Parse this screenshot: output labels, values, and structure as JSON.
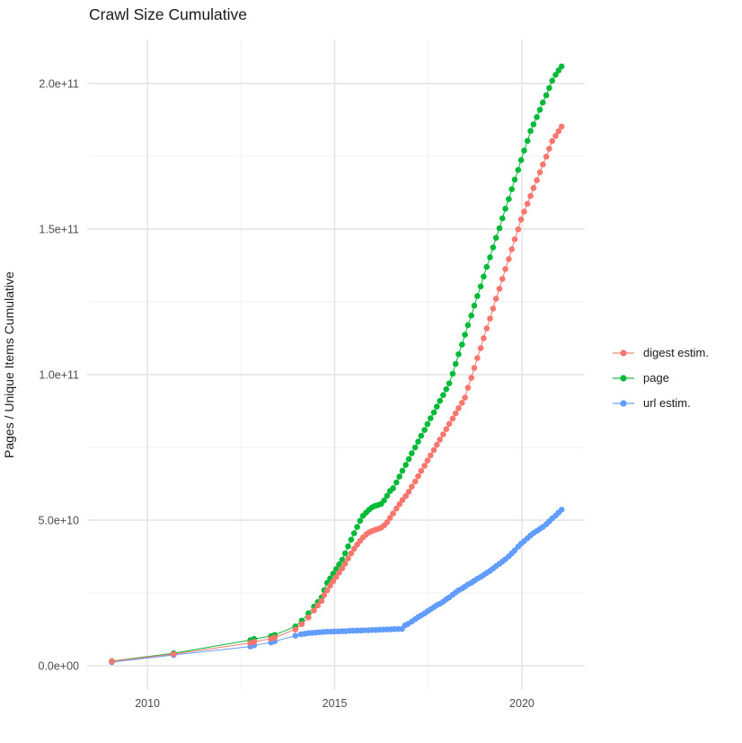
{
  "title": "Crawl Size Cumulative",
  "axes": {
    "y_label": "Pages / Unique Items Cumulative"
  },
  "legend": {
    "items": [
      {
        "label": "digest estim.",
        "color": "#F8766D"
      },
      {
        "label": "page",
        "color": "#00BA38"
      },
      {
        "label": "url estim.",
        "color": "#619CFF"
      }
    ]
  },
  "chart_data": {
    "type": "scatter",
    "title": "Crawl Size Cumulative",
    "xlabel": "",
    "ylabel": "Pages / Unique Items Cumulative",
    "grid": true,
    "legend_position": "right",
    "x_unit": "year",
    "value_unit_multiplier": 1000000000.0,
    "xlim": [
      2008.39,
      2021.68
    ],
    "ylim_billions": [
      -8.33,
      215.12
    ],
    "x_ticks": {
      "major": [
        2010,
        2015,
        2020
      ],
      "labels": [
        "2010",
        "2015",
        "2020"
      ],
      "minor": [
        2012.5,
        2017.5
      ]
    },
    "y_ticks": {
      "major_billions": [
        0,
        50,
        100,
        150,
        200
      ],
      "labels": [
        "0.0e+00",
        "5.0e+10",
        "1.0e+11",
        "1.5e+11",
        "2.0e+11"
      ],
      "minor_billions": [
        25,
        75,
        125,
        175
      ]
    },
    "series": [
      {
        "name": "digest estim.",
        "color": "#F8766D",
        "points_year_billions": [
          [
            2009.05,
            1.5
          ],
          [
            2010.7,
            4.0
          ],
          [
            2012.75,
            7.8
          ],
          [
            2012.85,
            8.2
          ],
          [
            2013.3,
            9.3
          ],
          [
            2013.4,
            9.7
          ],
          [
            2013.95,
            12.5
          ],
          [
            2014.12,
            14.3
          ],
          [
            2014.3,
            16.6
          ],
          [
            2014.45,
            19.0
          ],
          [
            2014.55,
            20.7
          ],
          [
            2014.65,
            22.3
          ],
          [
            2014.72,
            24.3
          ],
          [
            2014.8,
            25.9
          ],
          [
            2014.88,
            27.5
          ],
          [
            2014.96,
            29.0
          ],
          [
            2015.04,
            30.5
          ],
          [
            2015.12,
            32.0
          ],
          [
            2015.2,
            33.5
          ],
          [
            2015.28,
            35.1
          ],
          [
            2015.36,
            36.9
          ],
          [
            2015.44,
            38.6
          ],
          [
            2015.52,
            40.2
          ],
          [
            2015.6,
            41.6
          ],
          [
            2015.68,
            42.9
          ],
          [
            2015.76,
            44.1
          ],
          [
            2015.84,
            45.1
          ],
          [
            2015.92,
            45.8
          ],
          [
            2016.0,
            46.3
          ],
          [
            2016.08,
            46.7
          ],
          [
            2016.16,
            47.0
          ],
          [
            2016.24,
            47.4
          ],
          [
            2016.32,
            48.2
          ],
          [
            2016.4,
            49.3
          ],
          [
            2016.48,
            50.8
          ],
          [
            2016.56,
            52.3
          ],
          [
            2016.65,
            54.0
          ],
          [
            2016.73,
            55.5
          ],
          [
            2016.81,
            56.9
          ],
          [
            2016.9,
            58.3
          ],
          [
            2016.98,
            59.8
          ],
          [
            2017.06,
            61.5
          ],
          [
            2017.15,
            63.3
          ],
          [
            2017.23,
            65.1
          ],
          [
            2017.31,
            66.9
          ],
          [
            2017.4,
            68.7
          ],
          [
            2017.48,
            70.5
          ],
          [
            2017.56,
            72.3
          ],
          [
            2017.65,
            74.1
          ],
          [
            2017.73,
            75.9
          ],
          [
            2017.81,
            77.7
          ],
          [
            2017.9,
            79.5
          ],
          [
            2017.98,
            81.3
          ],
          [
            2018.06,
            83.1
          ],
          [
            2018.15,
            84.9
          ],
          [
            2018.23,
            86.7
          ],
          [
            2018.31,
            88.5
          ],
          [
            2018.4,
            90.3
          ],
          [
            2018.48,
            92.1
          ],
          [
            2018.56,
            95.5
          ],
          [
            2018.65,
            98.9
          ],
          [
            2018.73,
            102.3
          ],
          [
            2018.81,
            105.7
          ],
          [
            2018.9,
            109.1
          ],
          [
            2018.98,
            112.5
          ],
          [
            2019.06,
            115.9
          ],
          [
            2019.15,
            119.3
          ],
          [
            2019.23,
            122.7
          ],
          [
            2019.31,
            126.1
          ],
          [
            2019.4,
            129.5
          ],
          [
            2019.48,
            132.9
          ],
          [
            2019.56,
            136.3
          ],
          [
            2019.65,
            139.7
          ],
          [
            2019.73,
            143.1
          ],
          [
            2019.81,
            146.5
          ],
          [
            2019.9,
            149.9
          ],
          [
            2019.98,
            153.3
          ],
          [
            2020.06,
            156.0
          ],
          [
            2020.15,
            158.7
          ],
          [
            2020.23,
            161.4
          ],
          [
            2020.31,
            164.1
          ],
          [
            2020.4,
            166.8
          ],
          [
            2020.48,
            169.5
          ],
          [
            2020.56,
            172.2
          ],
          [
            2020.65,
            174.9
          ],
          [
            2020.73,
            177.6
          ],
          [
            2020.81,
            180.2
          ],
          [
            2020.9,
            182.0
          ],
          [
            2020.98,
            183.6
          ],
          [
            2021.06,
            185.2
          ]
        ]
      },
      {
        "name": "page",
        "color": "#00BA38",
        "points_year_billions": [
          [
            2009.05,
            1.6
          ],
          [
            2010.7,
            4.3
          ],
          [
            2012.75,
            8.8
          ],
          [
            2012.85,
            9.2
          ],
          [
            2013.3,
            10.2
          ],
          [
            2013.4,
            10.6
          ],
          [
            2013.95,
            13.5
          ],
          [
            2014.12,
            15.5
          ],
          [
            2014.3,
            18.0
          ],
          [
            2014.45,
            20.3
          ],
          [
            2014.55,
            21.9
          ],
          [
            2014.65,
            23.5
          ],
          [
            2014.72,
            26.0
          ],
          [
            2014.8,
            28.5
          ],
          [
            2014.88,
            30.0
          ],
          [
            2014.96,
            31.6
          ],
          [
            2015.04,
            33.2
          ],
          [
            2015.12,
            34.8
          ],
          [
            2015.2,
            36.4
          ],
          [
            2015.28,
            38.6
          ],
          [
            2015.36,
            41.0
          ],
          [
            2015.44,
            43.3
          ],
          [
            2015.52,
            45.5
          ],
          [
            2015.6,
            47.7
          ],
          [
            2015.68,
            49.8
          ],
          [
            2015.76,
            51.5
          ],
          [
            2015.84,
            52.6
          ],
          [
            2015.92,
            53.6
          ],
          [
            2016.0,
            54.4
          ],
          [
            2016.08,
            54.9
          ],
          [
            2016.16,
            55.2
          ],
          [
            2016.24,
            55.6
          ],
          [
            2016.32,
            56.8
          ],
          [
            2016.4,
            58.4
          ],
          [
            2016.48,
            60.0
          ],
          [
            2016.56,
            61.0
          ],
          [
            2016.65,
            63.0
          ],
          [
            2016.73,
            65.0
          ],
          [
            2016.81,
            67.0
          ],
          [
            2016.9,
            69.0
          ],
          [
            2016.98,
            71.0
          ],
          [
            2017.06,
            73.0
          ],
          [
            2017.15,
            75.0
          ],
          [
            2017.23,
            77.0
          ],
          [
            2017.31,
            79.0
          ],
          [
            2017.4,
            81.0
          ],
          [
            2017.48,
            83.0
          ],
          [
            2017.56,
            85.0
          ],
          [
            2017.65,
            87.0
          ],
          [
            2017.73,
            89.0
          ],
          [
            2017.81,
            91.0
          ],
          [
            2017.9,
            93.0
          ],
          [
            2017.98,
            95.0
          ],
          [
            2018.06,
            97.0
          ],
          [
            2018.15,
            100.3
          ],
          [
            2018.23,
            103.7
          ],
          [
            2018.31,
            107.0
          ],
          [
            2018.4,
            110.3
          ],
          [
            2018.48,
            113.7
          ],
          [
            2018.56,
            117.0
          ],
          [
            2018.65,
            120.3
          ],
          [
            2018.73,
            123.7
          ],
          [
            2018.81,
            127.0
          ],
          [
            2018.9,
            130.3
          ],
          [
            2018.98,
            133.7
          ],
          [
            2019.06,
            137.0
          ],
          [
            2019.15,
            140.3
          ],
          [
            2019.23,
            143.7
          ],
          [
            2019.31,
            147.0
          ],
          [
            2019.4,
            150.3
          ],
          [
            2019.48,
            153.7
          ],
          [
            2019.56,
            157.0
          ],
          [
            2019.65,
            160.3
          ],
          [
            2019.73,
            163.7
          ],
          [
            2019.81,
            167.0
          ],
          [
            2019.9,
            170.3
          ],
          [
            2019.98,
            173.7
          ],
          [
            2020.06,
            177.0
          ],
          [
            2020.15,
            180.3
          ],
          [
            2020.23,
            183.7
          ],
          [
            2020.31,
            186.0
          ],
          [
            2020.4,
            188.5
          ],
          [
            2020.48,
            191.0
          ],
          [
            2020.56,
            193.5
          ],
          [
            2020.65,
            196.0
          ],
          [
            2020.73,
            198.5
          ],
          [
            2020.81,
            201.0
          ],
          [
            2020.9,
            203.0
          ],
          [
            2020.98,
            204.5
          ],
          [
            2021.06,
            205.9
          ]
        ]
      },
      {
        "name": "url estim.",
        "color": "#619CFF",
        "points_year_billions": [
          [
            2009.05,
            1.2
          ],
          [
            2010.7,
            3.7
          ],
          [
            2012.75,
            6.6
          ],
          [
            2012.85,
            7.0
          ],
          [
            2013.3,
            8.0
          ],
          [
            2013.4,
            8.4
          ],
          [
            2013.95,
            10.3
          ],
          [
            2014.1,
            10.8
          ],
          [
            2014.2,
            11.0
          ],
          [
            2014.3,
            11.2
          ],
          [
            2014.4,
            11.3
          ],
          [
            2014.5,
            11.4
          ],
          [
            2014.6,
            11.5
          ],
          [
            2014.7,
            11.6
          ],
          [
            2014.8,
            11.7
          ],
          [
            2014.9,
            11.7
          ],
          [
            2015.0,
            11.8
          ],
          [
            2015.1,
            11.8
          ],
          [
            2015.2,
            11.9
          ],
          [
            2015.3,
            11.9
          ],
          [
            2015.4,
            12.0
          ],
          [
            2015.5,
            12.0
          ],
          [
            2015.6,
            12.1
          ],
          [
            2015.7,
            12.1
          ],
          [
            2015.8,
            12.2
          ],
          [
            2015.9,
            12.2
          ],
          [
            2016.0,
            12.3
          ],
          [
            2016.1,
            12.3
          ],
          [
            2016.2,
            12.4
          ],
          [
            2016.3,
            12.4
          ],
          [
            2016.4,
            12.5
          ],
          [
            2016.5,
            12.5
          ],
          [
            2016.6,
            12.6
          ],
          [
            2016.7,
            12.6
          ],
          [
            2016.8,
            12.7
          ],
          [
            2016.88,
            13.9
          ],
          [
            2016.96,
            14.4
          ],
          [
            2017.06,
            15.2
          ],
          [
            2017.15,
            16.0
          ],
          [
            2017.23,
            16.7
          ],
          [
            2017.31,
            17.3
          ],
          [
            2017.4,
            18.0
          ],
          [
            2017.48,
            18.7
          ],
          [
            2017.56,
            19.4
          ],
          [
            2017.65,
            20.1
          ],
          [
            2017.73,
            20.8
          ],
          [
            2017.81,
            21.3
          ],
          [
            2017.9,
            22.0
          ],
          [
            2017.98,
            22.8
          ],
          [
            2018.06,
            23.5
          ],
          [
            2018.15,
            24.4
          ],
          [
            2018.23,
            25.2
          ],
          [
            2018.31,
            25.9
          ],
          [
            2018.4,
            26.5
          ],
          [
            2018.48,
            27.2
          ],
          [
            2018.56,
            27.9
          ],
          [
            2018.65,
            28.5
          ],
          [
            2018.73,
            29.2
          ],
          [
            2018.81,
            29.9
          ],
          [
            2018.9,
            30.5
          ],
          [
            2018.98,
            31.2
          ],
          [
            2019.06,
            31.9
          ],
          [
            2019.15,
            32.6
          ],
          [
            2019.23,
            33.4
          ],
          [
            2019.31,
            34.2
          ],
          [
            2019.4,
            35.0
          ],
          [
            2019.48,
            35.8
          ],
          [
            2019.56,
            36.6
          ],
          [
            2019.65,
            37.6
          ],
          [
            2019.73,
            38.6
          ],
          [
            2019.81,
            39.6
          ],
          [
            2019.9,
            40.9
          ],
          [
            2019.98,
            41.9
          ],
          [
            2020.06,
            42.8
          ],
          [
            2020.15,
            43.8
          ],
          [
            2020.23,
            44.8
          ],
          [
            2020.31,
            45.6
          ],
          [
            2020.4,
            46.3
          ],
          [
            2020.48,
            47.0
          ],
          [
            2020.56,
            47.7
          ],
          [
            2020.65,
            48.6
          ],
          [
            2020.73,
            49.6
          ],
          [
            2020.81,
            50.6
          ],
          [
            2020.9,
            51.6
          ],
          [
            2020.98,
            52.6
          ],
          [
            2021.06,
            53.6
          ]
        ]
      }
    ]
  }
}
